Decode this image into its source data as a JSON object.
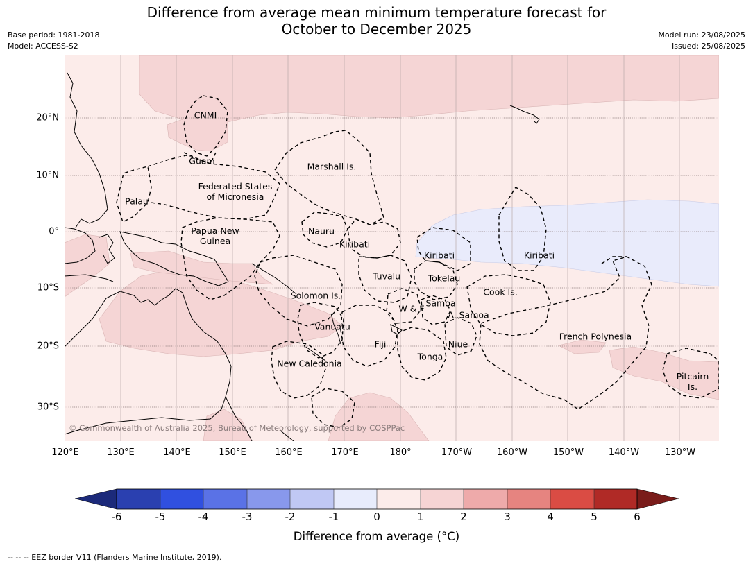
{
  "title_line1": "Difference from average mean minimum temperature forecast for",
  "title_line2": "October to December 2025",
  "base_period": "Base period: 1981-2018",
  "model": "Model: ACCESS-S2",
  "model_run": "Model run: 23/08/2025",
  "issued": "Issued: 25/08/2025",
  "lat_labels": [
    "20°N",
    "10°N",
    "0°",
    "10°S",
    "20°S",
    "30°S"
  ],
  "lon_labels": [
    "120°E",
    "130°E",
    "140°E",
    "150°E",
    "160°E",
    "170°E",
    "180°",
    "170°W",
    "160°W",
    "150°W",
    "140°W",
    "130°W"
  ],
  "regions": {
    "cnmi": "CNMI",
    "guam": "Guam",
    "marshall": "Marshall Is.",
    "fsm": "Federated States\nof Micronesia",
    "palau": "Palau",
    "png": "Papua New\nGuinea",
    "nauru": "Nauru",
    "kiribati_w": "Kiribati",
    "kiribati_c": "Kiribati",
    "kiribati_e": "Kiribati",
    "tuvalu": "Tuvalu",
    "tokelau": "Tokelau",
    "solomon": "Solomon Is.",
    "cook": "Cook Is.",
    "samoa": "Samoa",
    "wf": "W & F",
    "asamoa": "A. Samoa",
    "vanuatu": "Vanuatu",
    "fiji": "Fiji",
    "niue": "Niue",
    "tonga": "Tonga",
    "newcal": "New Caledonia",
    "frpoly": "French Polynesia",
    "pitcairn": "Pitcairn\nIs."
  },
  "copyright": "© Commonwealth of Australia 2025, Bureau of Meteorology, supported by COSPPac",
  "colorbar": {
    "ticks": [
      "-6",
      "-5",
      "-4",
      "-3",
      "-2",
      "-1",
      "0",
      "1",
      "2",
      "3",
      "4",
      "5",
      "6"
    ],
    "colors": [
      "#1c2a7a",
      "#2a40b0",
      "#3050e0",
      "#5a72e6",
      "#8898ec",
      "#c0c8f4",
      "#e8ecfc",
      "#fcecea",
      "#f6d4d4",
      "#eeaaaa",
      "#e68480",
      "#da4c44",
      "#b02a26",
      "#7a1c1a"
    ],
    "label": "Difference from average (°C)"
  },
  "eez_note": "--  --  -- EEZ border V11 (Flanders Marine Institute, 2019)."
}
